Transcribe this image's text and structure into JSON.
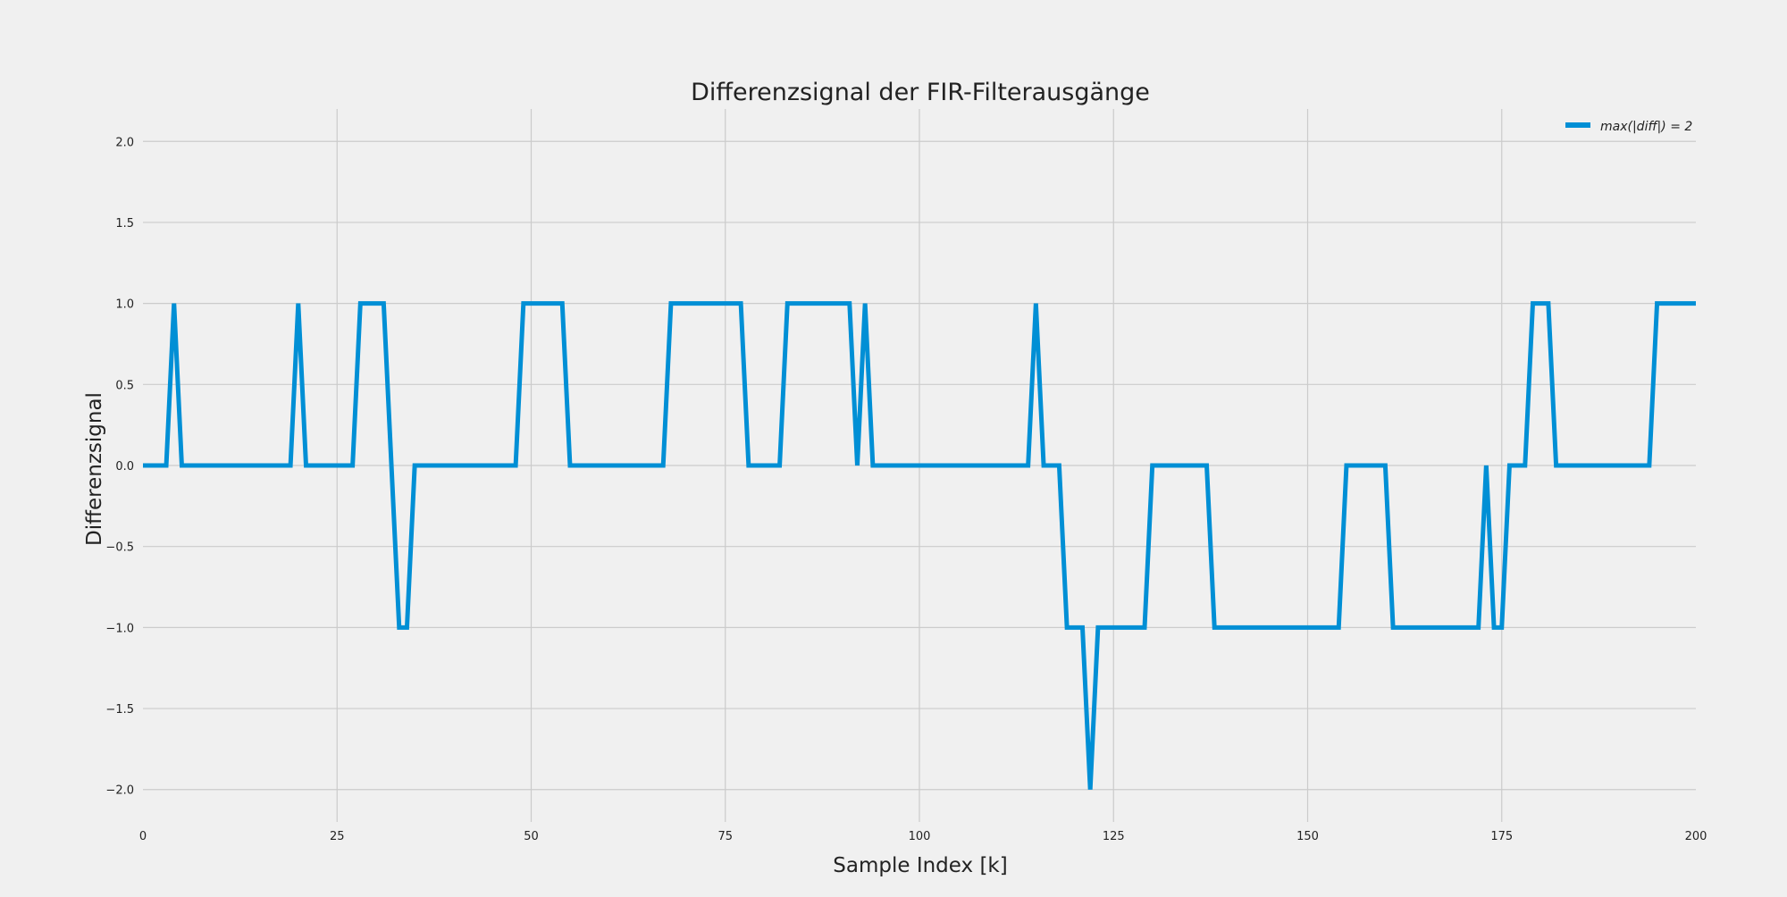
{
  "chart_data": {
    "type": "line",
    "title": "Differenzsignal der FIR-Filterausgänge",
    "xlabel": "Sample Index [k]",
    "ylabel": "Differenzsignal",
    "xlim": [
      0,
      200
    ],
    "ylim": [
      -2.2,
      2.2
    ],
    "grid": true,
    "legend_position": "top-right",
    "x_ticks": [
      0,
      25,
      50,
      75,
      100,
      125,
      150,
      175,
      200
    ],
    "x_tick_labels": [
      "0",
      "25",
      "50",
      "75",
      "100",
      "125",
      "150",
      "175",
      "200"
    ],
    "y_ticks": [
      -2.0,
      -1.5,
      -1.0,
      -0.5,
      0.0,
      0.5,
      1.0,
      1.5,
      2.0
    ],
    "y_tick_labels": [
      "−2.0",
      "−1.5",
      "−1.0",
      "−0.5",
      "0.0",
      "0.5",
      "1.0",
      "1.5",
      "2.0"
    ],
    "colors": {
      "background": "#f0f0f0",
      "grid": "#cbcbcb",
      "series": "#008fd5",
      "text": "#222222"
    },
    "series": [
      {
        "name": "max(|diff|) = 2",
        "x": [
          0,
          3,
          4,
          5,
          19,
          20,
          21,
          27,
          28,
          29,
          30,
          31,
          32,
          33,
          34,
          35,
          48,
          49,
          50,
          51,
          52,
          53,
          54,
          55,
          67,
          68,
          69,
          77,
          78,
          82,
          83,
          84,
          91,
          92,
          93,
          94,
          114,
          115,
          116,
          118,
          119,
          121,
          122,
          123,
          129,
          130,
          137,
          138,
          154,
          155,
          160,
          161,
          172,
          173,
          174,
          175,
          176,
          178,
          179,
          180,
          181,
          182,
          194,
          195,
          200
        ],
        "values": [
          0,
          0,
          1,
          0,
          0,
          1,
          0,
          0,
          1,
          1,
          1,
          1,
          0,
          -1,
          -1,
          0,
          0,
          1,
          1,
          1,
          1,
          1,
          1,
          0,
          0,
          1,
          1,
          1,
          0,
          0,
          1,
          1,
          1,
          0,
          1,
          0,
          0,
          1,
          0,
          0,
          -1,
          -1,
          -2,
          -1,
          -1,
          0,
          0,
          -1,
          -1,
          0,
          0,
          -1,
          -1,
          0,
          -1,
          -1,
          0,
          0,
          1,
          1,
          1,
          0,
          0,
          1,
          1
        ]
      }
    ]
  }
}
